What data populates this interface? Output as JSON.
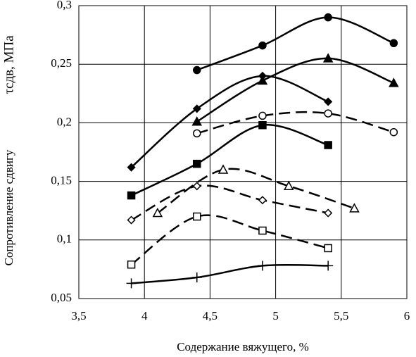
{
  "chart_data": {
    "type": "line",
    "x_label": "Содержание вяжущего, %",
    "y_label": "Сопротивление сдвигу",
    "y_unit_label": "τсдв, МПа",
    "xlim": [
      3.5,
      6
    ],
    "xticks": [
      {
        "value": 3.5,
        "label": "3,5"
      },
      4,
      {
        "value": 4.5,
        "label": "4,5"
      },
      5,
      {
        "value": 5.5,
        "label": "5,5"
      },
      6
    ],
    "ylim": [
      0.05,
      0.3
    ],
    "yticks": [
      {
        "value": 0.05,
        "label": "0,05"
      },
      {
        "value": 0.1,
        "label": "0,1"
      },
      {
        "value": 0.15,
        "label": "0,15"
      },
      {
        "value": 0.2,
        "label": "0,2"
      },
      {
        "value": 0.25,
        "label": "0,25"
      },
      {
        "value": 0.3,
        "label": "0,3"
      }
    ],
    "grid": true,
    "series": [
      {
        "color": "#000000",
        "marker": "circle",
        "filled": true,
        "dashed": false,
        "x": [
          4.4,
          4.9,
          5.4,
          5.9
        ],
        "values": [
          0.245,
          0.266,
          0.29,
          0.268
        ]
      },
      {
        "color": "#000000",
        "marker": "triangle",
        "filled": true,
        "dashed": false,
        "x": [
          4.4,
          4.9,
          5.4,
          5.9
        ],
        "values": [
          0.201,
          0.236,
          0.255,
          0.234
        ]
      },
      {
        "color": "#000000",
        "marker": "diamond",
        "filled": true,
        "dashed": false,
        "x": [
          3.9,
          4.4,
          4.9,
          5.4
        ],
        "values": [
          0.162,
          0.212,
          0.24,
          0.218
        ]
      },
      {
        "color": "#000000",
        "marker": "circle",
        "filled": false,
        "dashed": true,
        "x": [
          4.4,
          4.9,
          5.4,
          5.9
        ],
        "values": [
          0.191,
          0.206,
          0.208,
          0.192
        ]
      },
      {
        "color": "#000000",
        "marker": "square",
        "filled": true,
        "dashed": false,
        "x": [
          3.9,
          4.4,
          4.9,
          5.4
        ],
        "values": [
          0.138,
          0.165,
          0.198,
          0.181
        ]
      },
      {
        "color": "#000000",
        "marker": "triangle",
        "filled": false,
        "dashed": true,
        "x": [
          4.1,
          4.6,
          5.1,
          5.6
        ],
        "values": [
          0.123,
          0.16,
          0.146,
          0.127
        ]
      },
      {
        "color": "#000000",
        "marker": "diamond",
        "filled": false,
        "dashed": true,
        "x": [
          3.9,
          4.4,
          4.9,
          5.4
        ],
        "values": [
          0.117,
          0.146,
          0.134,
          0.123
        ]
      },
      {
        "color": "#000000",
        "marker": "square",
        "filled": false,
        "dashed": true,
        "x": [
          3.9,
          4.4,
          4.9,
          5.4
        ],
        "values": [
          0.079,
          0.12,
          0.108,
          0.093
        ]
      },
      {
        "color": "#000000",
        "marker": "plus",
        "filled": false,
        "dashed": false,
        "x": [
          3.9,
          4.4,
          4.9,
          5.4
        ],
        "values": [
          0.063,
          0.068,
          0.078,
          0.078
        ]
      }
    ]
  }
}
